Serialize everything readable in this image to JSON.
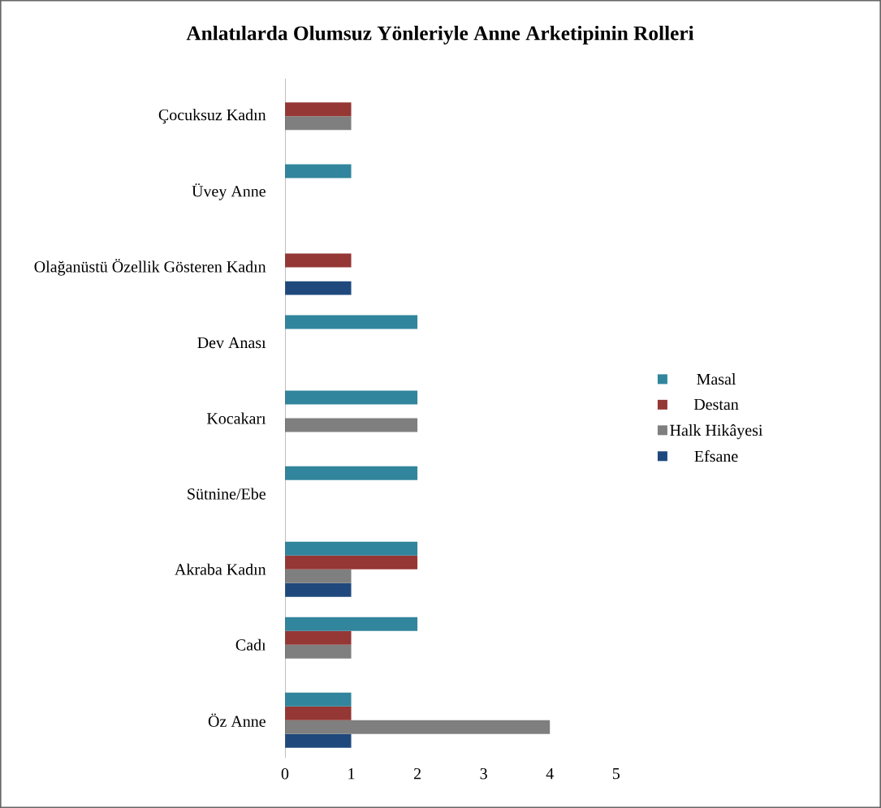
{
  "chart_data": {
    "type": "bar",
    "orientation": "horizontal",
    "title": "Anlatılarda Olumsuz Yönleriyle Anne Arketipinin Rolleri",
    "categories": [
      "Çocuksuz Kadın",
      "Üvey Anne",
      "Olağanüstü Özellik Gösteren Kadın",
      "Dev Anası",
      "Kocakarı",
      "Sütnine/Ebe",
      "Akraba Kadın",
      "Cadı",
      "Öz Anne"
    ],
    "series": [
      {
        "name": "Efsane",
        "color": "#1f497d",
        "values": [
          null,
          null,
          1,
          null,
          null,
          null,
          1,
          null,
          1
        ]
      },
      {
        "name": "Halk Hikâyesi",
        "color": "#7f7f7f",
        "values": [
          1,
          null,
          null,
          null,
          2,
          null,
          1,
          1,
          4
        ]
      },
      {
        "name": "Destan",
        "color": "#953735",
        "values": [
          1,
          null,
          1,
          null,
          null,
          null,
          2,
          1,
          1
        ]
      },
      {
        "name": "Masal",
        "color": "#31859c",
        "values": [
          null,
          1,
          null,
          2,
          2,
          2,
          2,
          2,
          1
        ]
      }
    ],
    "xlim": [
      0,
      5
    ],
    "xticks": [
      0,
      1,
      2,
      3,
      4,
      5
    ],
    "legend": "right"
  }
}
